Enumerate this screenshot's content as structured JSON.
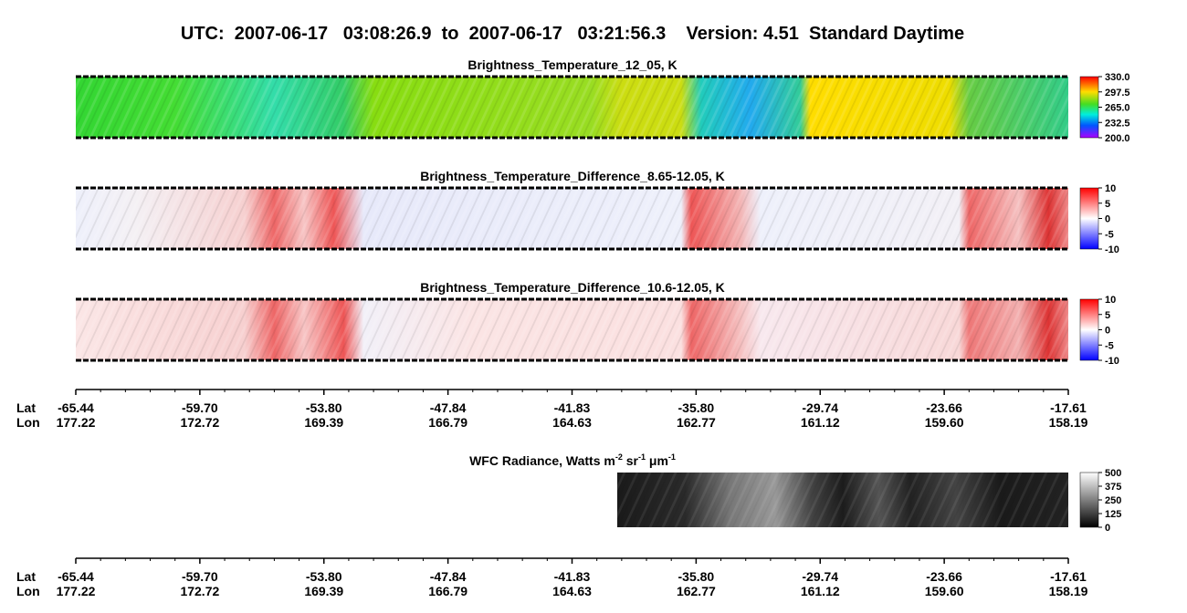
{
  "header": {
    "title": "UTC:  2007-06-17   03:08:26.9  to  2007-06-17   03:21:56.3    Version: 4.51  Standard Daytime"
  },
  "panels": [
    {
      "title": "Brightness_Temperature_12_05, K",
      "colorbar": [
        "330.0",
        "297.5",
        "265.0",
        "232.5",
        "200.0"
      ]
    },
    {
      "title": "Brightness_Temperature_Difference_8.65-12.05, K",
      "colorbar": [
        "10",
        "5",
        "0",
        "-5",
        "-10"
      ]
    },
    {
      "title": "Brightness_Temperature_Difference_10.6-12.05, K",
      "colorbar": [
        "10",
        "5",
        "0",
        "-5",
        "-10"
      ]
    }
  ],
  "wfc": {
    "title_parts": [
      "WFC Radiance, Watts m",
      "-2",
      " sr",
      "-1",
      " μm",
      "-1"
    ],
    "colorbar": [
      "500",
      "375",
      "250",
      "125",
      "0"
    ]
  },
  "axes": [
    {
      "lat_label": "Lat",
      "lon_label": "Lon",
      "lat": [
        "-65.44",
        "-59.70",
        "-53.80",
        "-47.84",
        "-41.83",
        "-35.80",
        "-29.74",
        "-23.66",
        "-17.61"
      ],
      "lon": [
        "177.22",
        "172.72",
        "169.39",
        "166.79",
        "164.63",
        "162.77",
        "161.12",
        "159.60",
        "158.19"
      ]
    },
    {
      "lat_label": "Lat",
      "lon_label": "Lon",
      "lat": [
        "-65.44",
        "-59.70",
        "-53.80",
        "-47.84",
        "-41.83",
        "-35.80",
        "-29.74",
        "-23.66",
        "-17.61"
      ],
      "lon": [
        "177.22",
        "172.72",
        "169.39",
        "166.79",
        "164.63",
        "162.77",
        "161.12",
        "159.60",
        "158.19"
      ]
    }
  ]
}
